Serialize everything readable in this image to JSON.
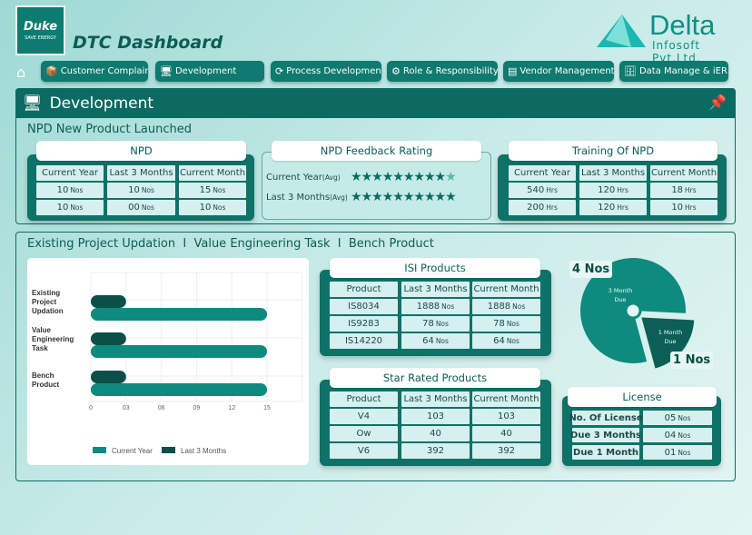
{
  "header": {
    "logo_brand": "Duke",
    "logo_tag": "SAVE ENERGY",
    "title": "DTC Dashboard",
    "company_name": "Delta",
    "company_sub": "Infosoft Pvt.Ltd."
  },
  "nav": [
    {
      "label": "Customer Complain",
      "icon": "box-icon"
    },
    {
      "label": "Development",
      "icon": "monitor-gear-icon"
    },
    {
      "label": "Process Development",
      "icon": "cycle-icon"
    },
    {
      "label": "Role & Responsibility",
      "icon": "network-icon"
    },
    {
      "label": "Vendor Management",
      "icon": "document-icon"
    },
    {
      "label": "Data Manage & iERP",
      "icon": "database-icon"
    }
  ],
  "page": {
    "title": "Development"
  },
  "section1": {
    "title": "NPD New Product Launched"
  },
  "npd": {
    "title": "NPD",
    "headers": [
      "Current Year",
      "Last 3 Months",
      "Current Month"
    ],
    "rows": [
      [
        {
          "v": "10",
          "u": "Nos"
        },
        {
          "v": "10",
          "u": "Nos"
        },
        {
          "v": "15",
          "u": "Nos"
        }
      ],
      [
        {
          "v": "10",
          "u": "Nos"
        },
        {
          "v": "00",
          "u": "Nos"
        },
        {
          "v": "10",
          "u": "Nos"
        }
      ]
    ]
  },
  "feedback": {
    "title": "NPD Feedback Rating",
    "rows": [
      {
        "label": "Current Year",
        "suffix": "(Avg)",
        "rating": 9.5,
        "max": 10
      },
      {
        "label": "Last 3 Months",
        "suffix": "(Avg)",
        "rating": 10,
        "max": 10
      }
    ]
  },
  "training": {
    "title": "Training Of NPD",
    "headers": [
      "Current Year",
      "Last 3 Months",
      "Current Month"
    ],
    "rows": [
      [
        {
          "v": "540",
          "u": "Hrs"
        },
        {
          "v": "120",
          "u": "Hrs"
        },
        {
          "v": "18",
          "u": "Hrs"
        }
      ],
      [
        {
          "v": "200",
          "u": "Hrs"
        },
        {
          "v": "120",
          "u": "Hrs"
        },
        {
          "v": "10",
          "u": "Hrs"
        }
      ]
    ]
  },
  "section2": {
    "title": "Existing Project Updation  I  Value Engineering Task  I  Bench Product"
  },
  "isi": {
    "title": "ISI Products",
    "headers": [
      "Product",
      "Last 3 Months",
      "Current Month"
    ],
    "rows": [
      [
        {
          "v": "IS8034"
        },
        {
          "v": "1888",
          "u": "Nos"
        },
        {
          "v": "1888",
          "u": "Nos"
        }
      ],
      [
        {
          "v": "IS9283"
        },
        {
          "v": "78",
          "u": "Nos"
        },
        {
          "v": "78",
          "u": "Nos"
        }
      ],
      [
        {
          "v": "IS14220"
        },
        {
          "v": "64",
          "u": "Nos"
        },
        {
          "v": "64",
          "u": "Nos"
        }
      ]
    ]
  },
  "star": {
    "title": "Star Rated Products",
    "headers": [
      "Product",
      "Last 3 Months",
      "Current Month"
    ],
    "rows": [
      [
        {
          "v": "V4"
        },
        {
          "v": "103"
        },
        {
          "v": "103"
        }
      ],
      [
        {
          "v": "Ow"
        },
        {
          "v": "40"
        },
        {
          "v": "40"
        }
      ],
      [
        {
          "v": "V6"
        },
        {
          "v": "392"
        },
        {
          "v": "392"
        }
      ]
    ]
  },
  "license": {
    "title": "License",
    "rows": [
      [
        {
          "v": "No. Of License"
        },
        {
          "v": "05",
          "u": "Nos"
        }
      ],
      [
        {
          "v": "Due 3 Months"
        },
        {
          "v": "04",
          "u": "Nos"
        }
      ],
      [
        {
          "v": "Due 1 Month"
        },
        {
          "v": "01",
          "u": "Nos"
        }
      ]
    ]
  },
  "colors": {
    "primary": "#0e7268",
    "dark": "#0b4f48",
    "cell": "#d5f0ee",
    "current_year": "#0e8a7e",
    "last_3_months": "#0b4f48"
  },
  "chart_data": [
    {
      "type": "bar",
      "orientation": "horizontal",
      "categories": [
        "Existing Project Updation",
        "Value Engineering Task",
        "Bench Product"
      ],
      "series": [
        {
          "name": "Current Year",
          "values": [
            15,
            15,
            15
          ]
        },
        {
          "name": "Last 3 Months",
          "values": [
            3,
            3,
            3
          ]
        }
      ],
      "xticks": [
        "0",
        "03",
        "06",
        "09",
        "12",
        "15"
      ],
      "xlim": [
        0,
        18
      ],
      "grid": true,
      "legend": "bottom"
    },
    {
      "type": "pie",
      "slices": [
        {
          "label": "3 Month Due",
          "value": 4,
          "value_label": "4 Nos"
        },
        {
          "label": "1 Month Due",
          "value": 1,
          "value_label": "1 Nos"
        }
      ]
    }
  ]
}
